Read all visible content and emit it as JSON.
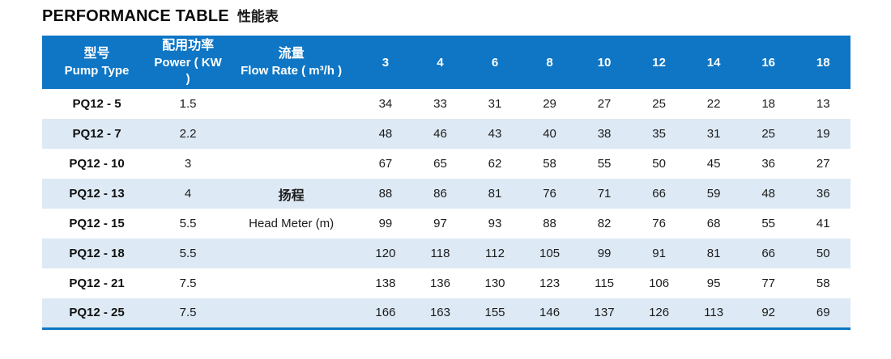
{
  "title": {
    "en": "PERFORMANCE TABLE",
    "zh": "性能表"
  },
  "colors": {
    "header_bg": "#0e76c5",
    "header_text": "#ffffff",
    "row_alt_bg": "#dde9f4",
    "row_bg": "#ffffff",
    "bottom_border": "#0e76c5",
    "body_text": "#1c1c1c"
  },
  "table": {
    "header": {
      "pump_type_zh": "型号",
      "pump_type_en": "Pump Type",
      "power_zh": "配用功率",
      "power_en": "Power ( KW )",
      "flow_zh": "流量",
      "flow_en": "Flow Rate ( m³/h )",
      "flow_values": [
        "3",
        "4",
        "6",
        "8",
        "10",
        "12",
        "14",
        "16",
        "18"
      ]
    },
    "head_meter_label_zh": "扬程",
    "head_meter_label_en": "Head Meter (m)",
    "rows": [
      {
        "pump_type": "PQ12 - 5",
        "power": "1.5",
        "mid_label": "",
        "values": [
          "34",
          "33",
          "31",
          "29",
          "27",
          "25",
          "22",
          "18",
          "13"
        ]
      },
      {
        "pump_type": "PQ12 - 7",
        "power": "2.2",
        "mid_label": "",
        "values": [
          "48",
          "46",
          "43",
          "40",
          "38",
          "35",
          "31",
          "25",
          "19"
        ]
      },
      {
        "pump_type": "PQ12 - 10",
        "power": "3",
        "mid_label": "",
        "values": [
          "67",
          "65",
          "62",
          "58",
          "55",
          "50",
          "45",
          "36",
          "27"
        ]
      },
      {
        "pump_type": "PQ12 - 13",
        "power": "4",
        "mid_label": "扬程",
        "values": [
          "88",
          "86",
          "81",
          "76",
          "71",
          "66",
          "59",
          "48",
          "36"
        ]
      },
      {
        "pump_type": "PQ12 - 15",
        "power": "5.5",
        "mid_label": "Head Meter (m)",
        "values": [
          "99",
          "97",
          "93",
          "88",
          "82",
          "76",
          "68",
          "55",
          "41"
        ]
      },
      {
        "pump_type": "PQ12 - 18",
        "power": "5.5",
        "mid_label": "",
        "values": [
          "120",
          "118",
          "112",
          "105",
          "99",
          "91",
          "81",
          "66",
          "50"
        ]
      },
      {
        "pump_type": "PQ12 - 21",
        "power": "7.5",
        "mid_label": "",
        "values": [
          "138",
          "136",
          "130",
          "123",
          "115",
          "106",
          "95",
          "77",
          "58"
        ]
      },
      {
        "pump_type": "PQ12 - 25",
        "power": "7.5",
        "mid_label": "",
        "values": [
          "166",
          "163",
          "155",
          "146",
          "137",
          "126",
          "113",
          "92",
          "69"
        ]
      }
    ]
  }
}
